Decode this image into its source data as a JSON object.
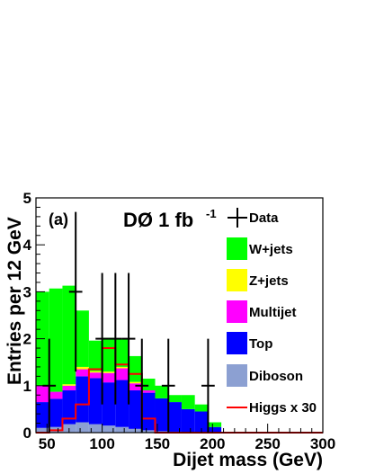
{
  "chart_data": {
    "type": "bar",
    "stacked": true,
    "panel_label": "(a)",
    "experiment_label": "DØ 1 fb",
    "experiment_label_sup": "-1",
    "xlabel": "Dijet mass (GeV)",
    "ylabel": "Entries per 12 GeV",
    "xlim": [
      40,
      300
    ],
    "ylim": [
      0,
      5
    ],
    "x_ticks": [
      50,
      100,
      150,
      200,
      250,
      300
    ],
    "y_ticks": [
      0,
      1,
      2,
      3,
      4,
      5
    ],
    "bin_edges": [
      40,
      52,
      64,
      76,
      88,
      100,
      112,
      124,
      136,
      148,
      160,
      172,
      184,
      196,
      208
    ],
    "series": [
      {
        "name": "Diboson",
        "color": "#8ca0d2",
        "values": [
          0.1,
          0.12,
          0.18,
          0.22,
          0.18,
          0.15,
          0.12,
          0.08,
          0.05,
          0.03,
          0.02,
          0.0,
          0.0,
          0.0
        ]
      },
      {
        "name": "Top",
        "color": "#0000ff",
        "values": [
          0.55,
          0.6,
          0.72,
          0.98,
          0.98,
          0.92,
          1.0,
          0.82,
          0.8,
          0.7,
          0.63,
          0.5,
          0.45,
          0.12
        ]
      },
      {
        "name": "Multijet",
        "color": "#ff00ff",
        "values": [
          0.35,
          0.15,
          0.1,
          0.15,
          0.12,
          0.2,
          0.25,
          0.15,
          0.05,
          0.0,
          0.0,
          0.0,
          0.0,
          0.0
        ]
      },
      {
        "name": "Z+jets",
        "color": "#ffff00",
        "values": [
          0.0,
          0.0,
          0.03,
          0.05,
          0.03,
          0.03,
          0.03,
          0.03,
          0.0,
          0.0,
          0.0,
          0.0,
          0.0,
          0.0
        ]
      },
      {
        "name": "W+jets",
        "color": "#00ff00",
        "values": [
          2.0,
          2.2,
          2.1,
          1.2,
          0.65,
          0.72,
          0.6,
          0.55,
          0.25,
          0.27,
          0.15,
          0.3,
          0.15,
          0.1
        ]
      }
    ],
    "signal": {
      "name": "Higgs x 30",
      "color": "#ff0000",
      "values": [
        0.0,
        0.05,
        0.3,
        0.6,
        1.35,
        1.8,
        1.45,
        1.25,
        0.3,
        0.0,
        0.0,
        0.0,
        0.0,
        0.0
      ]
    },
    "data": {
      "name": "Data",
      "x": [
        52,
        76,
        100,
        112,
        124,
        136,
        160,
        196
      ],
      "y": [
        1,
        3,
        2,
        2,
        2,
        1,
        1,
        1
      ],
      "yerr": [
        1,
        1.7,
        1.4,
        1.4,
        1.4,
        1,
        1,
        1
      ],
      "xerr": 6
    },
    "legend": [
      "Data",
      "W+jets",
      "Z+jets",
      "Multijet",
      "Top",
      "Diboson",
      "Higgs x 30"
    ],
    "legend_position": "right"
  }
}
